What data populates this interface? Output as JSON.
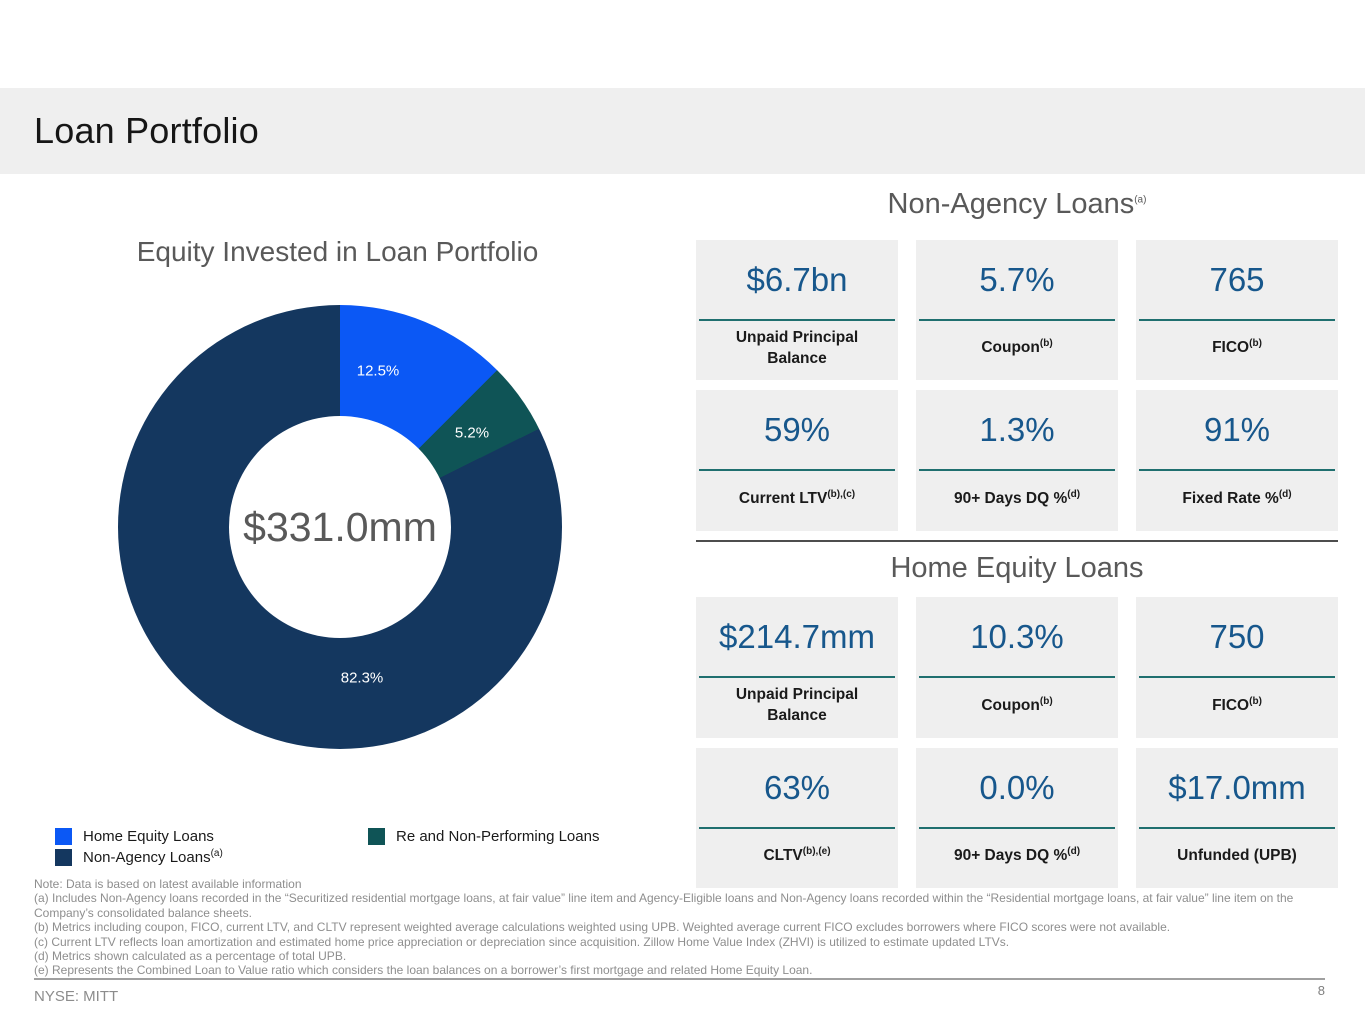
{
  "header": {
    "title": "Loan Portfolio"
  },
  "chart_data": {
    "type": "pie",
    "donut": true,
    "title": "Equity Invested in Loan Portfolio",
    "categories": [
      "Home Equity Loans",
      "Re and Non-Performing Loans",
      "Non-Agency Loans"
    ],
    "values": [
      12.5,
      5.2,
      82.3
    ],
    "labels": [
      "12.5%",
      "5.2%",
      "82.3%"
    ],
    "colors": [
      "#0b58f5",
      "#0f5456",
      "#14375f"
    ],
    "center_label": "$331.0mm",
    "start_angle_deg": 0,
    "direction": "clockwise",
    "legend_position": "bottom-left"
  },
  "legend": {
    "items": [
      {
        "label": "Home Equity Loans",
        "sup": ""
      },
      {
        "label": "Re and Non-Performing Loans",
        "sup": ""
      },
      {
        "label": "Non-Agency Loans",
        "sup": "(a)"
      }
    ]
  },
  "sections": [
    {
      "heading": "Non-Agency Loans",
      "heading_sup": "(a)",
      "rows": [
        [
          {
            "value": "$6.7bn",
            "label": "Unpaid Principal Balance",
            "sup": ""
          },
          {
            "value": "5.7%",
            "label": "Coupon",
            "sup": "(b)"
          },
          {
            "value": "765",
            "label": "FICO",
            "sup": "(b)"
          }
        ],
        [
          {
            "value": "59%",
            "label": "Current LTV",
            "sup": "(b),(c)"
          },
          {
            "value": "1.3%",
            "label": "90+ Days DQ %",
            "sup": "(d)"
          },
          {
            "value": "91%",
            "label": "Fixed Rate %",
            "sup": "(d)"
          }
        ]
      ]
    },
    {
      "heading": "Home Equity Loans",
      "heading_sup": "",
      "rows": [
        [
          {
            "value": "$214.7mm",
            "label": "Unpaid Principal Balance",
            "sup": ""
          },
          {
            "value": "10.3%",
            "label": "Coupon",
            "sup": "(b)"
          },
          {
            "value": "750",
            "label": "FICO",
            "sup": "(b)"
          }
        ],
        [
          {
            "value": "63%",
            "label": "CLTV",
            "sup": "(b),(e)"
          },
          {
            "value": "0.0%",
            "label": "90+ Days DQ %",
            "sup": "(d)"
          },
          {
            "value": "$17.0mm",
            "label": "Unfunded (UPB)",
            "sup": ""
          }
        ]
      ]
    }
  ],
  "footnotes": [
    "Note: Data is based on latest available information",
    "(a) Includes Non-Agency loans recorded in the “Securitized residential mortgage loans, at fair value” line item and Agency-Eligible loans and Non-Agency loans recorded within the “Residential mortgage loans, at fair value” line item on the Company’s consolidated balance sheets.",
    "(b) Metrics including coupon, FICO, current LTV, and CLTV represent weighted average calculations weighted using UPB. Weighted average current FICO excludes borrowers where FICO scores were not available.",
    "(c) Current LTV reflects loan amortization and estimated home price appreciation or depreciation since acquisition. Zillow Home Value Index (ZHVI) is utilized to estimate updated LTVs.",
    "(d) Metrics shown calculated as a percentage of total UPB.",
    "(e) Represents the Combined Loan to Value ratio which considers the loan balances on a borrower’s first mortgage and related Home Equity Loan."
  ],
  "footer": {
    "ticker": "NYSE: MITT",
    "page": "8"
  }
}
